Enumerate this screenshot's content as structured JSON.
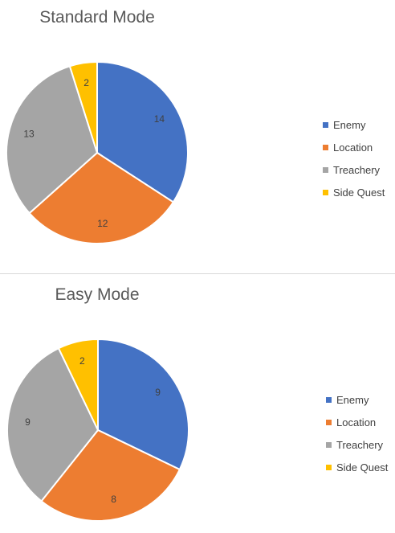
{
  "colors": {
    "Enemy": "#4472C4",
    "Location": "#ED7D31",
    "Treachery": "#A5A5A5",
    "Side Quest": "#FFC000"
  },
  "chart_data": [
    {
      "type": "pie",
      "title": "Standard Mode",
      "categories": [
        "Enemy",
        "Location",
        "Treachery",
        "Side Quest"
      ],
      "values": [
        14,
        12,
        13,
        2
      ],
      "legend_position": "right"
    },
    {
      "type": "pie",
      "title": "Easy Mode",
      "categories": [
        "Enemy",
        "Location",
        "Treachery",
        "Side Quest"
      ],
      "values": [
        9,
        8,
        9,
        2
      ],
      "legend_position": "right"
    }
  ]
}
